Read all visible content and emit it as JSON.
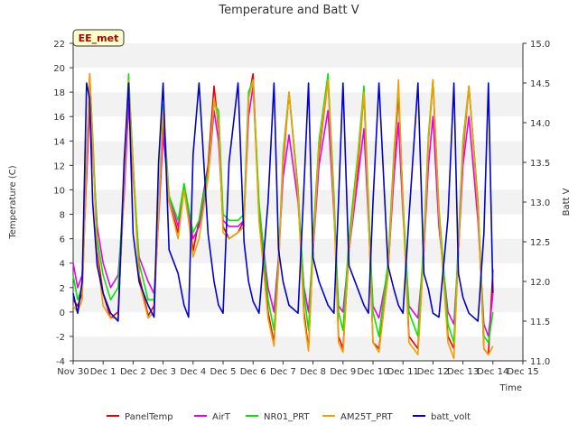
{
  "chart_data": {
    "type": "line",
    "title": "Temperature and Batt V",
    "site_label": "EE_met",
    "xlabel": "Time",
    "ylabel": "Temperature (C)",
    "y2label": "Batt V",
    "xlim": [
      0,
      15
    ],
    "ylim": [
      -4,
      22
    ],
    "y2lim": [
      11.0,
      15.0
    ],
    "x_ticks": [
      0,
      1,
      2,
      3,
      4,
      5,
      6,
      7,
      8,
      9,
      10,
      11,
      12,
      13,
      14,
      15
    ],
    "x_tick_labels": [
      "Nov 30",
      "Dec 1",
      "Dec 2",
      "Dec 3",
      "Dec 4",
      "Dec 5",
      "Dec 6",
      "Dec 7",
      "Dec 8",
      "Dec 9",
      "Dec 10",
      "Dec 11",
      "Dec 12",
      "Dec 13",
      "Dec 14",
      "Dec 15"
    ],
    "y_ticks": [
      -4,
      -2,
      0,
      2,
      4,
      6,
      8,
      10,
      12,
      14,
      16,
      18,
      20,
      22
    ],
    "y2_ticks": [
      11.0,
      11.5,
      12.0,
      12.5,
      13.0,
      13.5,
      14.0,
      14.5,
      15.0
    ],
    "grid": "horizontal bands",
    "legend": "bottom",
    "x_units": "days since Nov 30",
    "series": [
      {
        "name": "PanelTemp",
        "color": "#e8000b",
        "axis": "left",
        "x": [
          0.0,
          0.15,
          0.3,
          0.45,
          0.55,
          0.65,
          0.8,
          1.0,
          1.25,
          1.5,
          1.7,
          1.85,
          2.0,
          2.2,
          2.5,
          2.7,
          2.85,
          3.0,
          3.2,
          3.5,
          3.7,
          3.85,
          4.0,
          4.2,
          4.5,
          4.7,
          4.85,
          5.0,
          5.2,
          5.5,
          5.7,
          5.85,
          6.0,
          6.2,
          6.5,
          6.7,
          6.85,
          7.0,
          7.2,
          7.5,
          7.7,
          7.85,
          8.0,
          8.2,
          8.5,
          8.7,
          8.85,
          9.0,
          9.2,
          9.5,
          9.7,
          9.85,
          10.0,
          10.2,
          10.5,
          10.7,
          10.85,
          11.0,
          11.2,
          11.5,
          11.7,
          11.85,
          12.0,
          12.2,
          12.5,
          12.7,
          12.85,
          13.0,
          13.2,
          13.5,
          13.7,
          13.85,
          14.0
        ],
        "values": [
          1.0,
          0.5,
          1.5,
          12.0,
          19.5,
          14.0,
          5.0,
          1.5,
          -0.5,
          0.0,
          10.0,
          19.0,
          12.0,
          3.0,
          -0.3,
          0.5,
          8.0,
          15.5,
          9.0,
          6.5,
          10.5,
          8.0,
          5.0,
          7.5,
          12.0,
          18.5,
          15.0,
          7.0,
          6.0,
          6.5,
          7.5,
          17.5,
          19.5,
          8.0,
          0.0,
          -2.5,
          4.0,
          12.0,
          18.0,
          10.0,
          0.0,
          -3.0,
          5.0,
          13.0,
          19.0,
          9.0,
          -2.0,
          -3.0,
          5.0,
          12.0,
          18.0,
          8.0,
          -2.5,
          -3.0,
          3.0,
          12.0,
          18.0,
          9.0,
          -2.0,
          -3.0,
          5.0,
          14.0,
          19.0,
          8.0,
          -2.0,
          -3.0,
          5.0,
          13.0,
          18.5,
          9.0,
          -3.0,
          -3.5,
          3.5
        ]
      },
      {
        "name": "AirT",
        "color": "#e800e8",
        "axis": "left",
        "x": [
          0.0,
          0.15,
          0.3,
          0.45,
          0.55,
          0.65,
          0.8,
          1.0,
          1.25,
          1.5,
          1.7,
          1.85,
          2.0,
          2.2,
          2.5,
          2.7,
          2.85,
          3.0,
          3.2,
          3.5,
          3.7,
          3.85,
          4.0,
          4.2,
          4.5,
          4.7,
          4.85,
          5.0,
          5.2,
          5.5,
          5.7,
          5.85,
          6.0,
          6.2,
          6.5,
          6.7,
          6.85,
          7.0,
          7.2,
          7.5,
          7.7,
          7.85,
          8.0,
          8.2,
          8.5,
          8.7,
          8.85,
          9.0,
          9.2,
          9.5,
          9.7,
          9.85,
          10.0,
          10.2,
          10.5,
          10.7,
          10.85,
          11.0,
          11.2,
          11.5,
          11.7,
          11.85,
          12.0,
          12.2,
          12.5,
          12.7,
          12.85,
          13.0,
          13.2,
          13.5,
          13.7,
          13.85,
          14.0
        ],
        "values": [
          4.0,
          2.0,
          3.0,
          11.0,
          17.0,
          13.0,
          7.0,
          4.0,
          2.0,
          3.0,
          9.5,
          17.0,
          11.0,
          4.5,
          2.5,
          1.5,
          7.5,
          14.5,
          9.5,
          7.0,
          10.0,
          8.0,
          6.0,
          7.0,
          11.0,
          16.5,
          14.0,
          7.5,
          7.0,
          7.0,
          7.5,
          16.0,
          18.5,
          8.5,
          2.0,
          0.0,
          4.5,
          11.0,
          14.5,
          9.0,
          2.0,
          0.0,
          5.0,
          12.0,
          16.5,
          8.0,
          0.5,
          0.0,
          5.0,
          11.0,
          15.0,
          7.5,
          0.5,
          -0.5,
          3.5,
          11.0,
          15.5,
          8.0,
          0.5,
          -0.5,
          5.0,
          12.0,
          16.0,
          7.0,
          0.0,
          -1.0,
          5.0,
          12.0,
          16.0,
          7.5,
          -1.0,
          -2.0,
          1.5
        ]
      },
      {
        "name": "NR01_PRT",
        "color": "#00e800",
        "axis": "left",
        "x": [
          0.0,
          0.15,
          0.3,
          0.45,
          0.55,
          0.65,
          0.8,
          1.0,
          1.25,
          1.5,
          1.7,
          1.85,
          2.0,
          2.2,
          2.5,
          2.7,
          2.85,
          3.0,
          3.2,
          3.5,
          3.7,
          3.85,
          4.0,
          4.2,
          4.5,
          4.7,
          4.85,
          5.0,
          5.2,
          5.5,
          5.7,
          5.85,
          6.0,
          6.2,
          6.5,
          6.7,
          6.85,
          7.0,
          7.2,
          7.5,
          7.7,
          7.85,
          8.0,
          8.2,
          8.5,
          8.7,
          8.85,
          9.0,
          9.2,
          9.5,
          9.7,
          9.85,
          10.0,
          10.2,
          10.5,
          10.7,
          10.85,
          11.0,
          11.2,
          11.5,
          11.7,
          11.85,
          12.0,
          12.2,
          12.5,
          12.7,
          12.85,
          13.0,
          13.2,
          13.5,
          13.7,
          13.85,
          14.0
        ],
        "values": [
          3.0,
          1.0,
          2.0,
          13.0,
          19.0,
          14.5,
          6.0,
          3.0,
          1.0,
          2.0,
          11.0,
          19.5,
          12.0,
          4.0,
          1.0,
          1.0,
          8.5,
          17.0,
          9.5,
          7.5,
          10.5,
          8.5,
          6.5,
          7.5,
          11.5,
          17.0,
          16.5,
          8.0,
          7.5,
          7.5,
          8.0,
          18.0,
          19.0,
          9.0,
          1.0,
          -1.5,
          4.0,
          13.0,
          18.0,
          10.0,
          1.5,
          -1.5,
          6.0,
          14.0,
          19.5,
          9.5,
          0.0,
          -1.5,
          6.0,
          13.0,
          18.5,
          9.0,
          0.0,
          -2.0,
          4.0,
          13.0,
          18.5,
          9.0,
          0.0,
          -2.0,
          6.0,
          14.5,
          19.0,
          8.5,
          -1.0,
          -2.5,
          6.0,
          14.0,
          18.5,
          9.0,
          -2.0,
          -2.5,
          0.0
        ]
      },
      {
        "name": "AM25T_PRT",
        "color": "#f0a000",
        "axis": "left",
        "x": [
          0.0,
          0.15,
          0.3,
          0.45,
          0.55,
          0.65,
          0.8,
          1.0,
          1.25,
          1.5,
          1.7,
          1.85,
          2.0,
          2.2,
          2.5,
          2.7,
          2.85,
          3.0,
          3.2,
          3.5,
          3.7,
          3.85,
          4.0,
          4.2,
          4.5,
          4.7,
          4.85,
          5.0,
          5.2,
          5.5,
          5.7,
          5.85,
          6.0,
          6.2,
          6.5,
          6.7,
          6.85,
          7.0,
          7.2,
          7.5,
          7.7,
          7.85,
          8.0,
          8.2,
          8.5,
          8.7,
          8.85,
          9.0,
          9.2,
          9.5,
          9.7,
          9.85,
          10.0,
          10.2,
          10.5,
          10.7,
          10.85,
          11.0,
          11.2,
          11.5,
          11.7,
          11.85,
          12.0,
          12.2,
          12.5,
          12.7,
          12.85,
          13.0,
          13.2,
          13.5,
          13.7,
          13.85,
          14.0
        ],
        "values": [
          0.5,
          0.0,
          1.0,
          12.5,
          19.5,
          14.0,
          4.5,
          0.5,
          -0.5,
          -0.5,
          10.5,
          19.0,
          11.5,
          2.5,
          -0.5,
          0.0,
          8.0,
          16.5,
          9.0,
          6.0,
          10.0,
          7.5,
          4.5,
          6.0,
          11.0,
          17.5,
          15.5,
          6.5,
          6.0,
          6.5,
          7.0,
          17.5,
          19.0,
          7.5,
          -0.5,
          -2.8,
          3.5,
          12.5,
          18.0,
          9.5,
          -0.5,
          -3.2,
          5.0,
          13.5,
          19.0,
          8.5,
          -2.5,
          -3.3,
          5.0,
          12.5,
          18.0,
          8.0,
          -2.5,
          -3.3,
          3.0,
          12.5,
          19.0,
          8.5,
          -2.5,
          -3.5,
          5.0,
          14.0,
          19.0,
          8.0,
          -2.5,
          -3.8,
          5.0,
          13.5,
          18.5,
          8.5,
          -3.0,
          -3.5,
          -2.8
        ]
      },
      {
        "name": "batt_volt",
        "color": "#0000d0",
        "axis": "right",
        "x": [
          0.0,
          0.15,
          0.3,
          0.45,
          0.55,
          0.65,
          0.8,
          1.0,
          1.25,
          1.5,
          1.7,
          1.85,
          2.0,
          2.2,
          2.5,
          2.7,
          2.85,
          3.0,
          3.2,
          3.5,
          3.7,
          3.85,
          4.0,
          4.2,
          4.5,
          4.7,
          4.85,
          5.0,
          5.2,
          5.5,
          5.7,
          5.85,
          6.0,
          6.2,
          6.5,
          6.7,
          6.85,
          7.0,
          7.2,
          7.5,
          7.7,
          7.85,
          8.0,
          8.2,
          8.5,
          8.7,
          8.85,
          9.0,
          9.2,
          9.5,
          9.7,
          9.85,
          10.0,
          10.2,
          10.5,
          10.7,
          10.85,
          11.0,
          11.2,
          11.5,
          11.7,
          11.85,
          12.0,
          12.2,
          12.5,
          12.7,
          12.85,
          13.0,
          13.2,
          13.5,
          13.7,
          13.85,
          14.0
        ],
        "values": [
          11.85,
          11.6,
          12.0,
          14.5,
          14.3,
          13.0,
          12.2,
          11.85,
          11.6,
          11.5,
          13.5,
          14.5,
          12.6,
          12.0,
          11.7,
          11.55,
          13.5,
          14.5,
          12.4,
          12.1,
          11.7,
          11.55,
          13.6,
          14.5,
          12.6,
          12.0,
          11.7,
          11.6,
          13.5,
          14.5,
          12.5,
          12.0,
          11.75,
          11.6,
          13.0,
          14.5,
          12.4,
          12.0,
          11.7,
          11.6,
          13.2,
          14.5,
          12.3,
          12.0,
          11.7,
          11.6,
          13.0,
          14.5,
          12.2,
          11.9,
          11.7,
          11.6,
          13.0,
          14.5,
          12.2,
          11.9,
          11.7,
          11.6,
          12.8,
          14.5,
          12.1,
          11.9,
          11.6,
          11.55,
          12.8,
          14.5,
          12.1,
          11.8,
          11.6,
          11.5,
          12.6,
          14.5,
          11.85
        ]
      }
    ]
  }
}
